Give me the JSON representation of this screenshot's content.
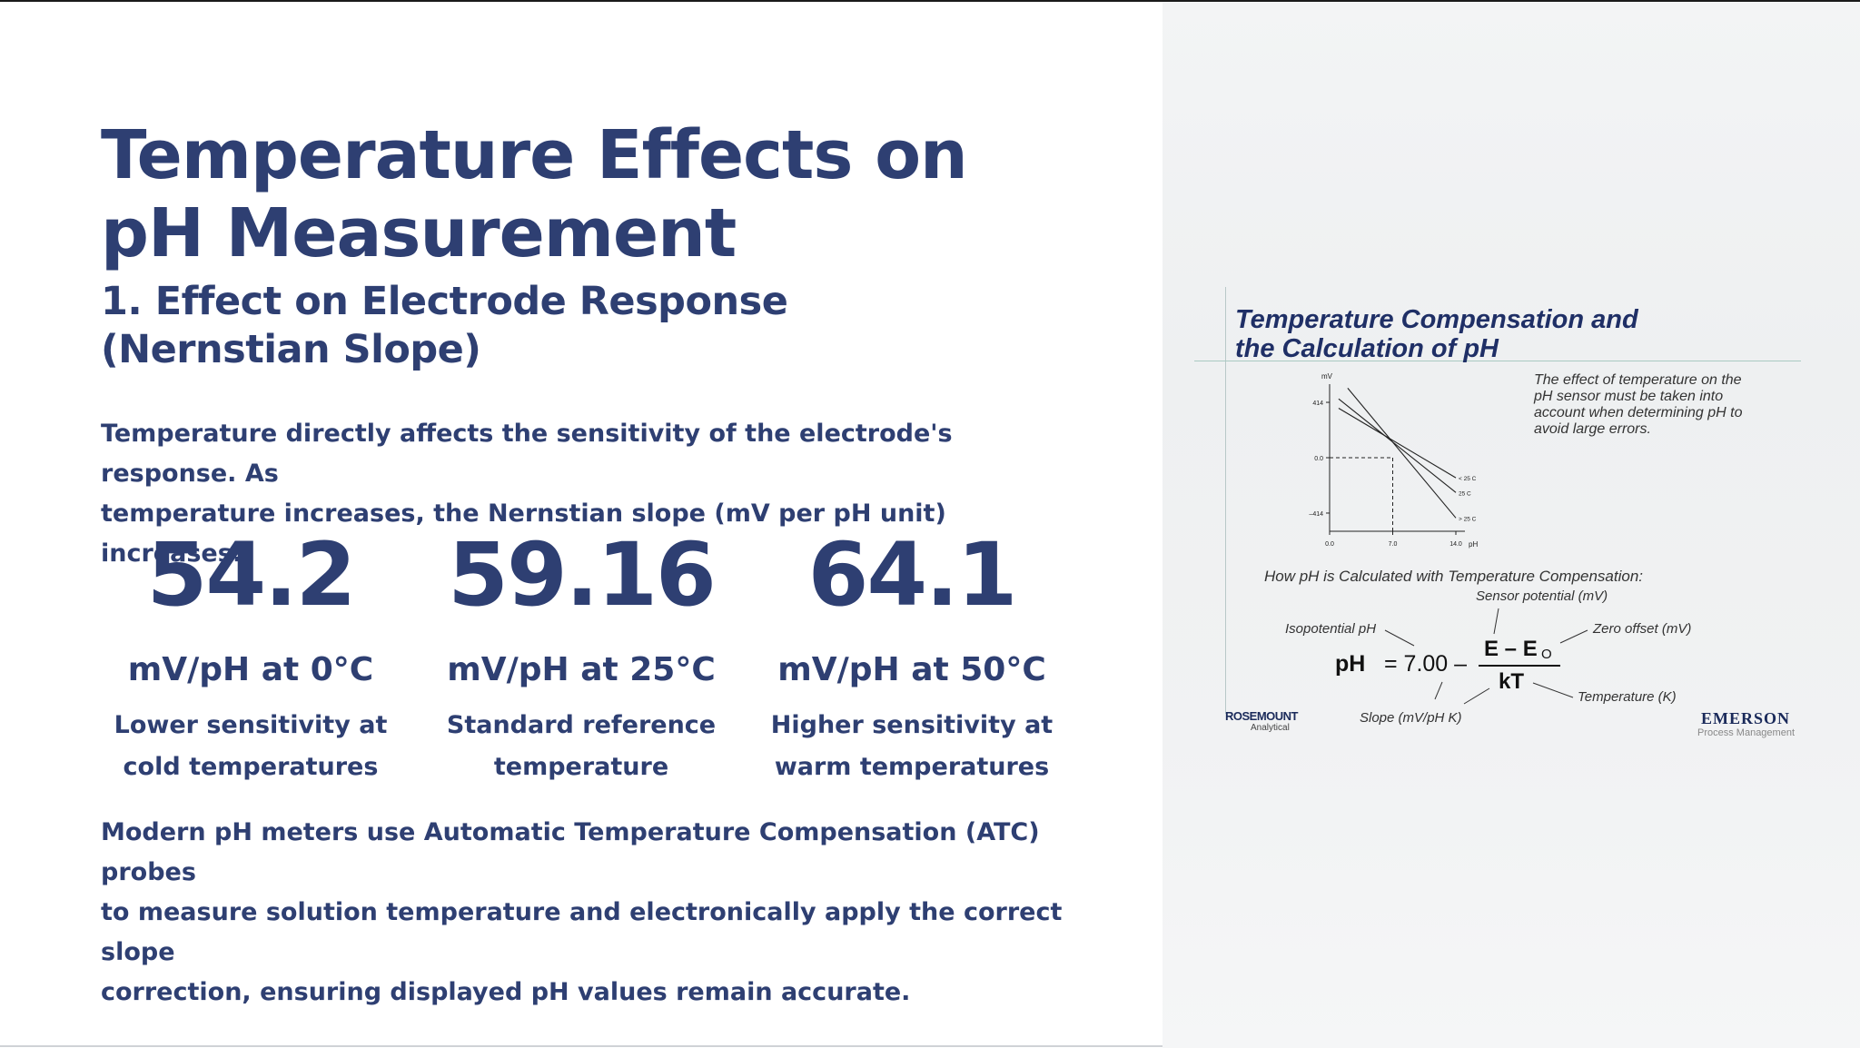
{
  "slide": {
    "title_line1": "Temperature Effects on",
    "title_line2": "pH Measurement",
    "subtitle_line1": "1. Effect on Electrode Response",
    "subtitle_line2": "(Nernstian Slope)",
    "intro_line1": "Temperature directly affects the sensitivity of the electrode's response. As",
    "intro_line2": "temperature increases, the Nernstian slope (mV per pH unit) increases:",
    "stats": [
      {
        "value": "54.2",
        "unit": "mV/pH at 0°C",
        "desc_line1": "Lower sensitivity at",
        "desc_line2": "cold temperatures"
      },
      {
        "value": "59.16",
        "unit": "mV/pH at 25°C",
        "desc_line1": "Standard reference",
        "desc_line2": "temperature"
      },
      {
        "value": "64.1",
        "unit": "mV/pH at 50°C",
        "desc_line1": "Higher sensitivity at",
        "desc_line2": "warm temperatures"
      }
    ],
    "closing_line1": "Modern pH meters use Automatic Temperature Compensation (ATC) probes",
    "closing_line2": "to measure solution temperature and electronically apply the correct slope",
    "closing_line3": "correction, ensuring displayed pH values remain accurate."
  },
  "figure": {
    "title_line1": "Temperature Compensation and",
    "title_line2": "the Calculation of pH",
    "note_line1": "The effect of temperature on the",
    "note_line2": "pH sensor must be taken into",
    "note_line3": "account when determining pH to",
    "note_line4": "avoid large errors.",
    "how_label": "How pH is Calculated with Temperature Compensation:",
    "annotations": {
      "sensor_potential": "Sensor potential (mV)",
      "isopotential": "Isopotential pH",
      "zero_offset": "Zero offset (mV)",
      "temperature": "Temperature (K)",
      "slope": "Slope (mV/pH K)"
    },
    "equation": {
      "lhs": "pH",
      "eq": "= 7.00 –",
      "numerator": "E – E",
      "subscript": "O",
      "denominator": "kT"
    },
    "logos": {
      "rosemount": "ROSEMOUNT",
      "rosemount_sub": "Analytical",
      "emerson": "EMERSON",
      "emerson_sub": "Process Management"
    },
    "chart_data": {
      "type": "line",
      "ylabel": "mV",
      "xlabel": "pH",
      "x_ticks": [
        "0.0",
        "7.0",
        "14.0"
      ],
      "y_ticks": [
        "414",
        "0.0",
        "–414"
      ],
      "xlim": [
        0,
        14
      ],
      "ylim": [
        -550,
        550
      ],
      "series": [
        {
          "name": "< 25 C",
          "x": [
            1,
            14
          ],
          "y": [
            370,
            -150
          ]
        },
        {
          "name": "25 C",
          "x": [
            1,
            14
          ],
          "y": [
            440,
            -260
          ]
        },
        {
          "name": "> 25 C",
          "x": [
            2,
            14
          ],
          "y": [
            520,
            -450
          ]
        }
      ],
      "isopotential": {
        "x": 7.0,
        "y": 0.0
      }
    }
  }
}
